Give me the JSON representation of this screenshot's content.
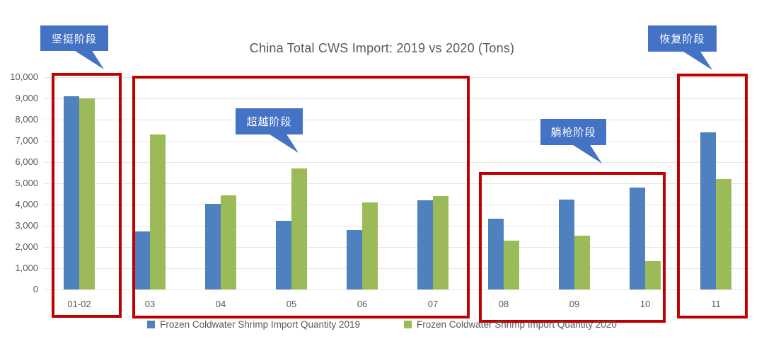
{
  "chart_data": {
    "type": "bar",
    "title": "China Total CWS Import: 2019 vs 2020 (Tons)",
    "categories": [
      "01-02",
      "03",
      "04",
      "05",
      "06",
      "07",
      "08",
      "09",
      "10",
      "11"
    ],
    "series": [
      {
        "name": "Frozen Coldwater Shrimp Import Quantity 2019",
        "color": "#4e81bd",
        "values": [
          9100,
          2750,
          4050,
          3250,
          2800,
          4200,
          3350,
          4250,
          4800,
          7400
        ]
      },
      {
        "name": "Frozen Coldwater Shrimp Import Quantity 2020",
        "color": "#9bbb59",
        "values": [
          9000,
          7300,
          4450,
          5700,
          4100,
          4400,
          2300,
          2550,
          1350,
          5200
        ]
      }
    ],
    "ylim": [
      0,
      10000
    ],
    "ytick_interval": 1000,
    "ytick_labels": [
      "0",
      "1,000",
      "2,000",
      "3,000",
      "4,000",
      "5,000",
      "6,000",
      "7,000",
      "8,000",
      "9,000",
      "10,000"
    ],
    "grid": true,
    "legend_position": "bottom"
  },
  "legend": [
    {
      "label": "Frozen Coldwater Shrimp Import Quantity 2019",
      "color": "#4e81bd"
    },
    {
      "label": "Frozen Coldwater Shrimp Import Quantity 2020",
      "color": "#9bbb59"
    }
  ],
  "annotations": {
    "stages": [
      {
        "label": "坚挺阶段",
        "categories": [
          "01-02"
        ]
      },
      {
        "label": "超越阶段",
        "categories": [
          "03",
          "04",
          "05",
          "06",
          "07"
        ]
      },
      {
        "label": "躺枪阶段",
        "categories": [
          "08",
          "09",
          "10"
        ]
      },
      {
        "label": "恢复阶段",
        "categories": [
          "11"
        ]
      }
    ]
  },
  "colors": {
    "bar_2019": "#4e81bd",
    "bar_2020": "#9bbb59",
    "stage_box_border": "#c00000",
    "callout_background": "#4472c4",
    "callout_text": "#ffffff",
    "axis_text": "#595959",
    "gridline": "#e8e5e4"
  }
}
